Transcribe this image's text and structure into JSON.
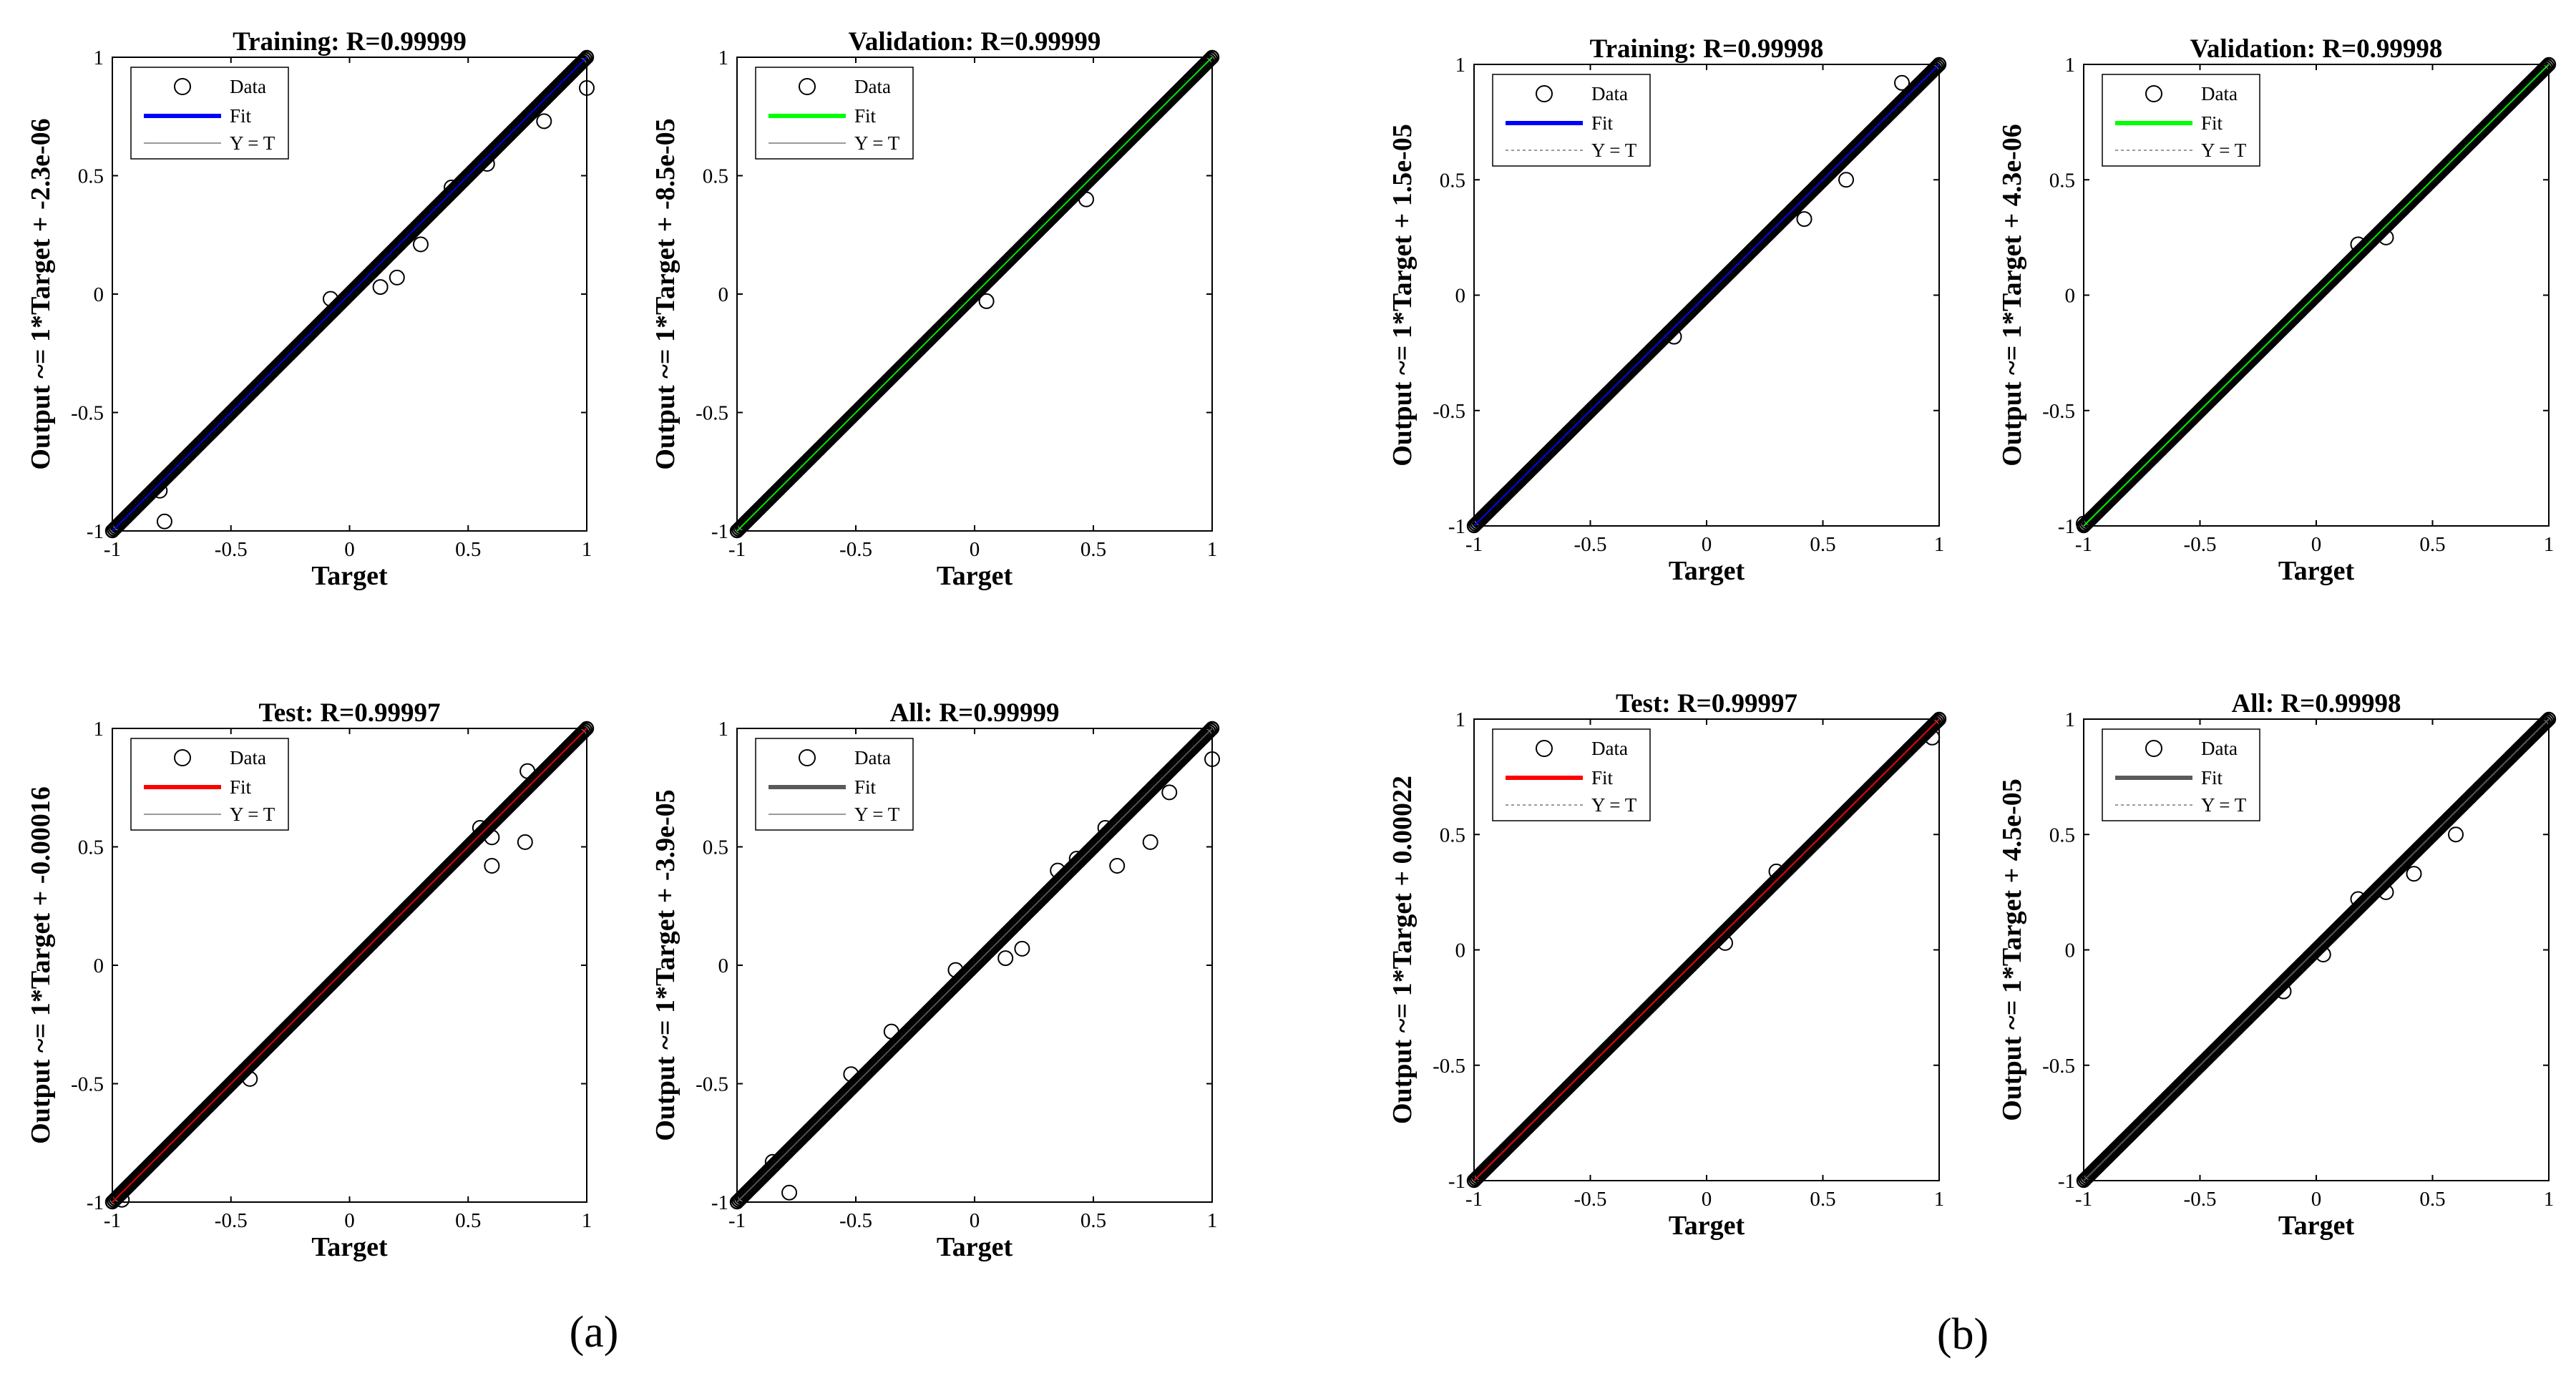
{
  "chart_data": [
    {
      "type": "scatter",
      "panel": "a",
      "title": "Training: R=0.99999",
      "xlabel": "Target",
      "ylabel": "Output ~= 1*Target + -2.3e-06",
      "xlim": [
        -1,
        1
      ],
      "ylim": [
        -1,
        1
      ],
      "xticks": [
        "-1",
        "-0.5",
        "0",
        "0.5",
        "1"
      ],
      "yticks": [
        "-1",
        "-0.5",
        "0",
        "0.5",
        "1"
      ],
      "fit": {
        "slope": 1,
        "intercept": -2.3e-06,
        "color": "#0000ff"
      },
      "legend": {
        "items": [
          "Data",
          "Fit",
          "Y = T"
        ],
        "placement": "top-left"
      },
      "outliers": [
        [
          -0.78,
          -0.96
        ],
        [
          -0.8,
          -0.83
        ],
        [
          0.2,
          0.07
        ],
        [
          0.3,
          0.21
        ],
        [
          0.13,
          0.03
        ],
        [
          -0.08,
          -0.02
        ],
        [
          0.58,
          0.55
        ],
        [
          0.82,
          0.73
        ],
        [
          1.0,
          0.87
        ],
        [
          0.43,
          0.45
        ]
      ]
    },
    {
      "type": "scatter",
      "panel": "a",
      "title": "Validation: R=0.99999",
      "xlabel": "Target",
      "ylabel": "Output ~= 1*Target + -8.5e-05",
      "xlim": [
        -1,
        1
      ],
      "ylim": [
        -1,
        1
      ],
      "xticks": [
        "-1",
        "-0.5",
        "0",
        "0.5",
        "1"
      ],
      "yticks": [
        "-1",
        "-0.5",
        "0",
        "0.5",
        "1"
      ],
      "fit": {
        "slope": 1,
        "intercept": -8.5e-05,
        "color": "#00ff00"
      },
      "legend": {
        "items": [
          "Data",
          "Fit",
          "Y = T"
        ],
        "placement": "top-left"
      },
      "outliers": [
        [
          0.05,
          -0.03
        ],
        [
          0.47,
          0.4
        ]
      ]
    },
    {
      "type": "scatter",
      "panel": "a",
      "title": "Test: R=0.99997",
      "xlabel": "Target",
      "ylabel": "Output ~= 1*Target + -0.00016",
      "xlim": [
        -1,
        1
      ],
      "ylim": [
        -1,
        1
      ],
      "xticks": [
        "-1",
        "-0.5",
        "0",
        "0.5",
        "1"
      ],
      "yticks": [
        "-1",
        "-0.5",
        "0",
        "0.5",
        "1"
      ],
      "fit": {
        "slope": 1,
        "intercept": -0.00016,
        "color": "#ff0000"
      },
      "legend": {
        "items": [
          "Data",
          "Fit",
          "Y = T"
        ],
        "placement": "top-left"
      },
      "outliers": [
        [
          0.6,
          0.42
        ],
        [
          0.74,
          0.52
        ],
        [
          0.55,
          0.58
        ],
        [
          0.6,
          0.54
        ],
        [
          0.75,
          0.82
        ],
        [
          -0.42,
          -0.48
        ],
        [
          -0.96,
          -0.99
        ]
      ]
    },
    {
      "type": "scatter",
      "panel": "a",
      "title": "All: R=0.99999",
      "xlabel": "Target",
      "ylabel": "Output ~= 1*Target + -3.9e-05",
      "xlim": [
        -1,
        1
      ],
      "ylim": [
        -1,
        1
      ],
      "xticks": [
        "-1",
        "-0.5",
        "0",
        "0.5",
        "1"
      ],
      "yticks": [
        "-1",
        "-0.5",
        "0",
        "0.5",
        "1"
      ],
      "fit": {
        "slope": 1,
        "intercept": -3.9e-05,
        "color": "#5a5a5a"
      },
      "legend": {
        "items": [
          "Data",
          "Fit",
          "Y = T"
        ],
        "placement": "top-left"
      },
      "outliers": [
        [
          -0.78,
          -0.96
        ],
        [
          0.6,
          0.42
        ],
        [
          0.74,
          0.52
        ],
        [
          1.0,
          0.87
        ],
        [
          0.55,
          0.58
        ],
        [
          0.2,
          0.07
        ],
        [
          0.13,
          0.03
        ],
        [
          -0.08,
          -0.02
        ],
        [
          -0.35,
          -0.28
        ],
        [
          -0.52,
          -0.46
        ],
        [
          0.35,
          0.4
        ],
        [
          0.82,
          0.73
        ],
        [
          0.43,
          0.45
        ],
        [
          -0.85,
          -0.83
        ]
      ]
    },
    {
      "type": "scatter",
      "panel": "b",
      "title": "Training: R=0.99998",
      "xlabel": "Target",
      "ylabel": "Output ~= 1*Target + 1.5e-05",
      "xlim": [
        -1,
        1
      ],
      "ylim": [
        -1,
        1
      ],
      "xticks": [
        "-1",
        "-0.5",
        "0",
        "0.5",
        "1"
      ],
      "yticks": [
        "-1",
        "-0.5",
        "0",
        "0.5",
        "1"
      ],
      "fit": {
        "slope": 1,
        "intercept": 1.5e-05,
        "color": "#0000ff"
      },
      "legend": {
        "items": [
          "Data",
          "Fit",
          "Y = T"
        ],
        "placement": "top-left"
      },
      "outliers": [
        [
          0.6,
          0.5
        ],
        [
          0.42,
          0.33
        ],
        [
          -0.14,
          -0.18
        ],
        [
          0.84,
          0.92
        ]
      ]
    },
    {
      "type": "scatter",
      "panel": "b",
      "title": "Validation: R=0.99998",
      "xlabel": "Target",
      "ylabel": "Output ~= 1*Target + 4.3e-06",
      "xlim": [
        -1,
        1
      ],
      "ylim": [
        -1,
        1
      ],
      "xticks": [
        "-1",
        "-0.5",
        "0",
        "0.5",
        "1"
      ],
      "yticks": [
        "-1",
        "-0.5",
        "0",
        "0.5",
        "1"
      ],
      "fit": {
        "slope": 1,
        "intercept": 4.3e-06,
        "color": "#00ff00"
      },
      "legend": {
        "items": [
          "Data",
          "Fit",
          "Y = T"
        ],
        "placement": "top-left"
      },
      "outliers": [
        [
          0.3,
          0.25
        ],
        [
          0.18,
          0.22
        ],
        [
          -1.0,
          -0.99
        ]
      ]
    },
    {
      "type": "scatter",
      "panel": "b",
      "title": "Test: R=0.99997",
      "xlabel": "Target",
      "ylabel": "Output ~= 1*Target + 0.00022",
      "xlim": [
        -1,
        1
      ],
      "ylim": [
        -1,
        1
      ],
      "xticks": [
        "-1",
        "-0.5",
        "0",
        "0.5",
        "1"
      ],
      "yticks": [
        "-1",
        "-0.5",
        "0",
        "0.5",
        "1"
      ],
      "fit": {
        "slope": 1,
        "intercept": 0.00022,
        "color": "#ff0000"
      },
      "legend": {
        "items": [
          "Data",
          "Fit",
          "Y = T"
        ],
        "placement": "top-left"
      },
      "outliers": [
        [
          0.3,
          0.34
        ],
        [
          0.08,
          0.03
        ],
        [
          0.97,
          0.92
        ]
      ]
    },
    {
      "type": "scatter",
      "panel": "b",
      "title": "All: R=0.99998",
      "xlabel": "Target",
      "ylabel": "Output ~= 1*Target + 4.5e-05",
      "xlim": [
        -1,
        1
      ],
      "ylim": [
        -1,
        1
      ],
      "xticks": [
        "-1",
        "-0.5",
        "0",
        "0.5",
        "1"
      ],
      "yticks": [
        "-1",
        "-0.5",
        "0",
        "0.5",
        "1"
      ],
      "fit": {
        "slope": 1,
        "intercept": 4.5e-05,
        "color": "#5a5a5a"
      },
      "legend": {
        "items": [
          "Data",
          "Fit",
          "Y = T"
        ],
        "placement": "top-left"
      },
      "outliers": [
        [
          0.6,
          0.5
        ],
        [
          0.3,
          0.25
        ],
        [
          0.03,
          -0.02
        ],
        [
          0.42,
          0.33
        ],
        [
          -0.14,
          -0.18
        ],
        [
          0.18,
          0.22
        ]
      ]
    }
  ],
  "captions": [
    "(a)",
    "(b)"
  ],
  "colors": {
    "data_marker": "#000000",
    "reference_line": "#9a9a9a",
    "axes": "#000000"
  }
}
